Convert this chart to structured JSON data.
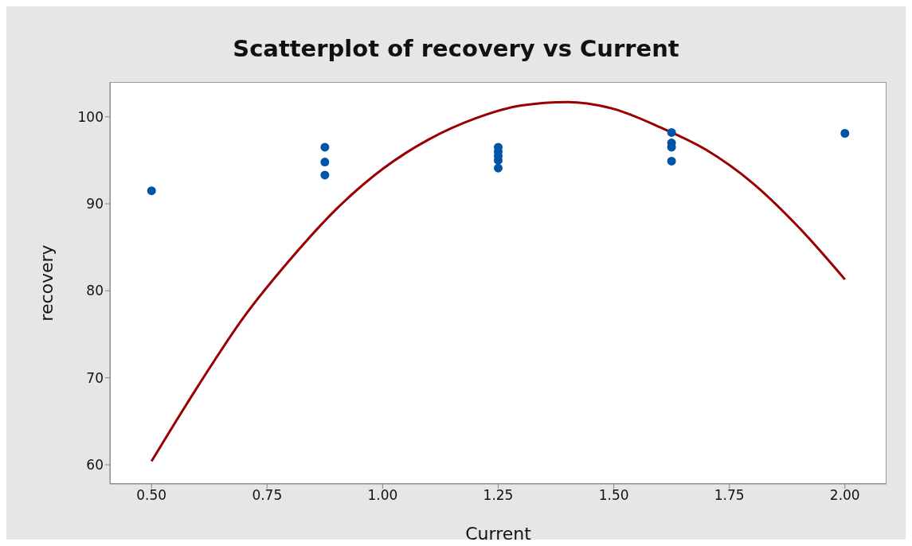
{
  "chart_data": {
    "type": "scatter",
    "title": "Scatterplot of recovery vs Current",
    "xlabel": "Current",
    "ylabel": "recovery",
    "xlim": [
      0.41,
      2.09
    ],
    "xticks": [
      {
        "value": 0.5,
        "label": "0.50"
      },
      {
        "value": 0.75,
        "label": "0.75"
      },
      {
        "value": 1,
        "label": "1.00"
      },
      {
        "value": 1.25,
        "label": "1.25"
      },
      {
        "value": 1.5,
        "label": "1.50"
      },
      {
        "value": 1.75,
        "label": "1.75"
      },
      {
        "value": 2,
        "label": "2.00"
      }
    ],
    "ylim": [
      57.8,
      104
    ],
    "yticks": [
      60,
      70,
      80,
      90,
      100
    ],
    "grid": false,
    "series": [
      {
        "marker": "circle",
        "color": "#0054a6",
        "x": [
          0.5,
          0.875,
          0.875,
          0.875,
          1.25,
          1.25,
          1.25,
          1.25,
          1.25,
          1.625,
          1.625,
          1.625,
          1.625,
          2.0
        ],
        "values": [
          91.5,
          96.5,
          94.8,
          93.3,
          96.5,
          96,
          95.5,
          95,
          94.1,
          98.2,
          97,
          96.5,
          94.9,
          98.1
        ]
      },
      {
        "type": "line",
        "color": "#990000",
        "line_style": "solid",
        "x": [
          0.5,
          0.6,
          0.7,
          0.8,
          0.9,
          1.0,
          1.1,
          1.2,
          1.3,
          1.4,
          1.5,
          1.6,
          1.7,
          1.8,
          1.9,
          2.0
        ],
        "values": [
          60.4,
          69,
          77,
          83.6,
          89.4,
          94,
          97.4,
          99.8,
          101.3,
          101.7,
          100.9,
          98.8,
          96.2,
          92.4,
          87.3,
          81.3
        ]
      }
    ]
  }
}
